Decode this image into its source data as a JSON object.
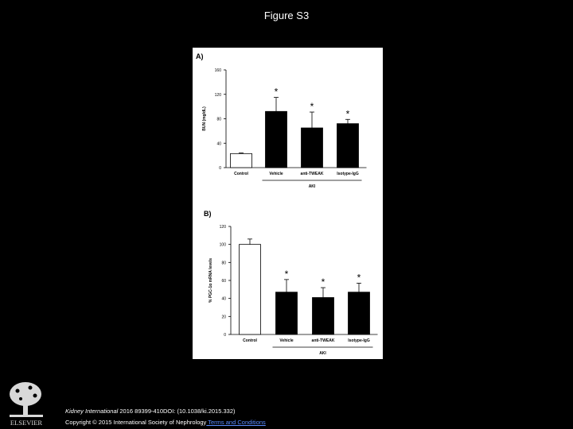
{
  "slide": {
    "title": "Figure S3"
  },
  "footer": {
    "journal": "Kidney International",
    "citation": " 2016 89399-410DOI: (10.1038/ki.2015.332)",
    "copyright": "Copyright © 2015 International Society of Nephrology",
    "terms_link": " Terms and Conditions",
    "publisher_logo": "ELSEVIER"
  },
  "colors": {
    "bar_filled": "#000000",
    "bar_open": "#ffffff",
    "background": "#000000",
    "link": "#5a8cff"
  },
  "chart_data": [
    {
      "panel_label": "A)",
      "type": "bar",
      "categories": [
        "Control",
        "Vehicle",
        "anti-TWEAK",
        "Isotype-IgG"
      ],
      "values": [
        23,
        92,
        65,
        72
      ],
      "error": [
        1,
        23,
        26,
        7
      ],
      "significance": [
        "",
        "*",
        "*",
        "*"
      ],
      "ylabel": "BUN (mg/dL)",
      "ylim": [
        0,
        160
      ],
      "yticks": [
        0,
        40,
        80,
        120,
        160
      ],
      "group_label": "AKI",
      "group_categories": [
        "Vehicle",
        "anti-TWEAK",
        "Isotype-IgG"
      ]
    },
    {
      "panel_label": "B)",
      "type": "bar",
      "categories": [
        "Control",
        "Vehicle",
        "anti-TWEAK",
        "Isotype-IgG"
      ],
      "values": [
        100,
        47,
        41,
        47
      ],
      "error": [
        6,
        14,
        11,
        10
      ],
      "significance": [
        "",
        "*",
        "*",
        "*"
      ],
      "ylabel": "% PGC-1α mRNA levels",
      "ylim": [
        0,
        120
      ],
      "yticks": [
        0,
        20,
        40,
        60,
        80,
        100,
        120
      ],
      "group_label": "AKI",
      "group_categories": [
        "Vehicle",
        "anti-TWEAK",
        "Isotype-IgG"
      ]
    }
  ]
}
